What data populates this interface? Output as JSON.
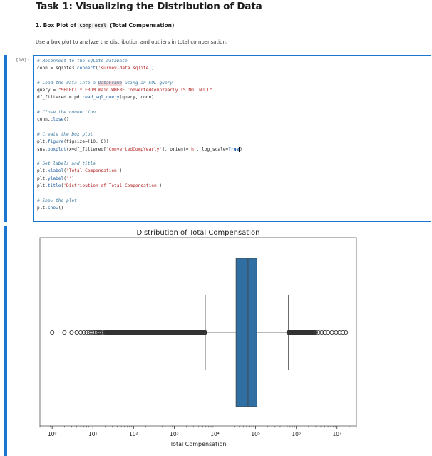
{
  "heading": "Task 1: Visualizing the Distribution of Data",
  "subheading": {
    "prefix": "1. Box Plot of ",
    "code": "CompTotal",
    "suffix": " (Total Compensation)"
  },
  "description": "Use a box plot to analyze the distribution and outliers in total compensation.",
  "cell": {
    "prompt": "[18]:",
    "code": {
      "c1": "# Reconnect to the SQLite database",
      "l1a": "conn = sqlite3.",
      "l1f": "connect",
      "l1b": "(",
      "l1s": "'survey-data.sqlite'",
      "l1c": ")",
      "c2a": "# Load the data into a ",
      "c2h": "DataFrame",
      "c2b": " using an SQL query",
      "l2a": "query = ",
      "l2s": "\"SELECT * FROM main WHERE ConvertedCompYearly IS NOT NULL\"",
      "l3a": "df_filtered = pd.",
      "l3f": "read_sql_query",
      "l3b": "(query, conn)",
      "c3": "# Close the connection",
      "l4a": "conn.",
      "l4f": "close",
      "l4b": "()",
      "c4": "# Create the box plot",
      "l5a": "plt.",
      "l5f": "figure",
      "l5b": "(figsize=(10, 6))",
      "l6a": "sns.",
      "l6f": "boxplot",
      "l6b": "(x=df_filtered[",
      "l6s": "'ConvertedCompYearly'",
      "l6c": "], orient=",
      "l6s2": "'h'",
      "l6d": ", log_scale=",
      "l6k": "True",
      "l6e": ")",
      "c5": "# Set labels and title",
      "l7a": "plt.",
      "l7f": "xlabel",
      "l7b": "(",
      "l7s": "'Total Compensation'",
      "l7c": ")",
      "l8a": "plt.",
      "l8f": "ylabel",
      "l8b": "(",
      "l8s": "''",
      "l8c": ")",
      "l9a": "plt.",
      "l9f": "title",
      "l9b": "(",
      "l9s": "'Distribution of Total Compensation'",
      "l9c": ")",
      "c6": "# Show the plot",
      "l10a": "plt.",
      "l10f": "show",
      "l10b": "()"
    }
  },
  "colors": {
    "accent": "#1976d2",
    "box_fill": "#2f6fa3"
  },
  "chart_data": {
    "type": "box",
    "orientation": "horizontal",
    "title": "Distribution of Total Compensation",
    "xlabel": "Total Compensation",
    "ylabel": "",
    "x_scale": "log",
    "xlim": [
      0.5,
      30000000
    ],
    "x_ticks": [
      {
        "value": 1,
        "label": "10⁰"
      },
      {
        "value": 10,
        "label": "10¹"
      },
      {
        "value": 100,
        "label": "10²"
      },
      {
        "value": 1000,
        "label": "10³"
      },
      {
        "value": 10000,
        "label": "10⁴"
      },
      {
        "value": 100000,
        "label": "10⁵"
      },
      {
        "value": 1000000,
        "label": "10⁶"
      },
      {
        "value": 10000000,
        "label": "10⁷"
      }
    ],
    "box": {
      "whisker_low": 5800,
      "q1": 33000,
      "median": 65000,
      "q3": 107000,
      "whisker_high": 640000
    },
    "outliers_low": [
      1,
      2,
      3,
      4,
      5,
      6,
      7,
      8,
      9,
      10,
      11,
      12,
      13,
      14,
      15,
      16,
      18,
      20
    ],
    "outliers_high": [
      3000000,
      3500000,
      4200000,
      5000000,
      6000000,
      7500000,
      9500000,
      11500000,
      14000000,
      16500000
    ],
    "outlier_dense_low": [
      20,
      5800
    ],
    "outlier_dense_high": [
      640000,
      2800000
    ]
  }
}
